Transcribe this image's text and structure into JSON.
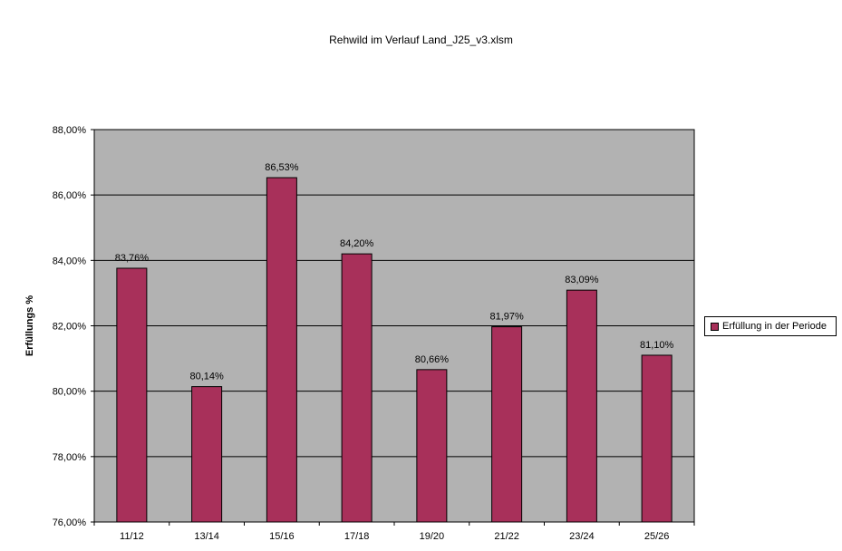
{
  "chart_data": {
    "type": "bar",
    "title": "Rehwild im Verlauf Land_J25_v3.xlsm",
    "xlabel": "",
    "ylabel": "Erfüllungs %",
    "ylim": [
      76,
      88
    ],
    "yticks": [
      76,
      78,
      80,
      82,
      84,
      86,
      88
    ],
    "ytick_labels": [
      "76,00%",
      "78,00%",
      "80,00%",
      "82,00%",
      "84,00%",
      "86,00%",
      "88,00%"
    ],
    "categories": [
      "11/12",
      "13/14",
      "15/16",
      "17/18",
      "19/20",
      "21/22",
      "23/24",
      "25/26"
    ],
    "series": [
      {
        "name": "Erfüllung in der Periode",
        "values": [
          83.76,
          80.14,
          86.53,
          84.2,
          80.66,
          81.97,
          83.09,
          81.1
        ],
        "data_labels": [
          "83,76%",
          "80,14%",
          "86,53%",
          "84,20%",
          "80,66%",
          "81,97%",
          "83,09%",
          "81,10%"
        ]
      }
    ],
    "grid": true,
    "legend_position": "right",
    "colors": {
      "bar": "#a8305a",
      "plot_background": "#b2b2b2",
      "gridline": "#000000"
    }
  }
}
